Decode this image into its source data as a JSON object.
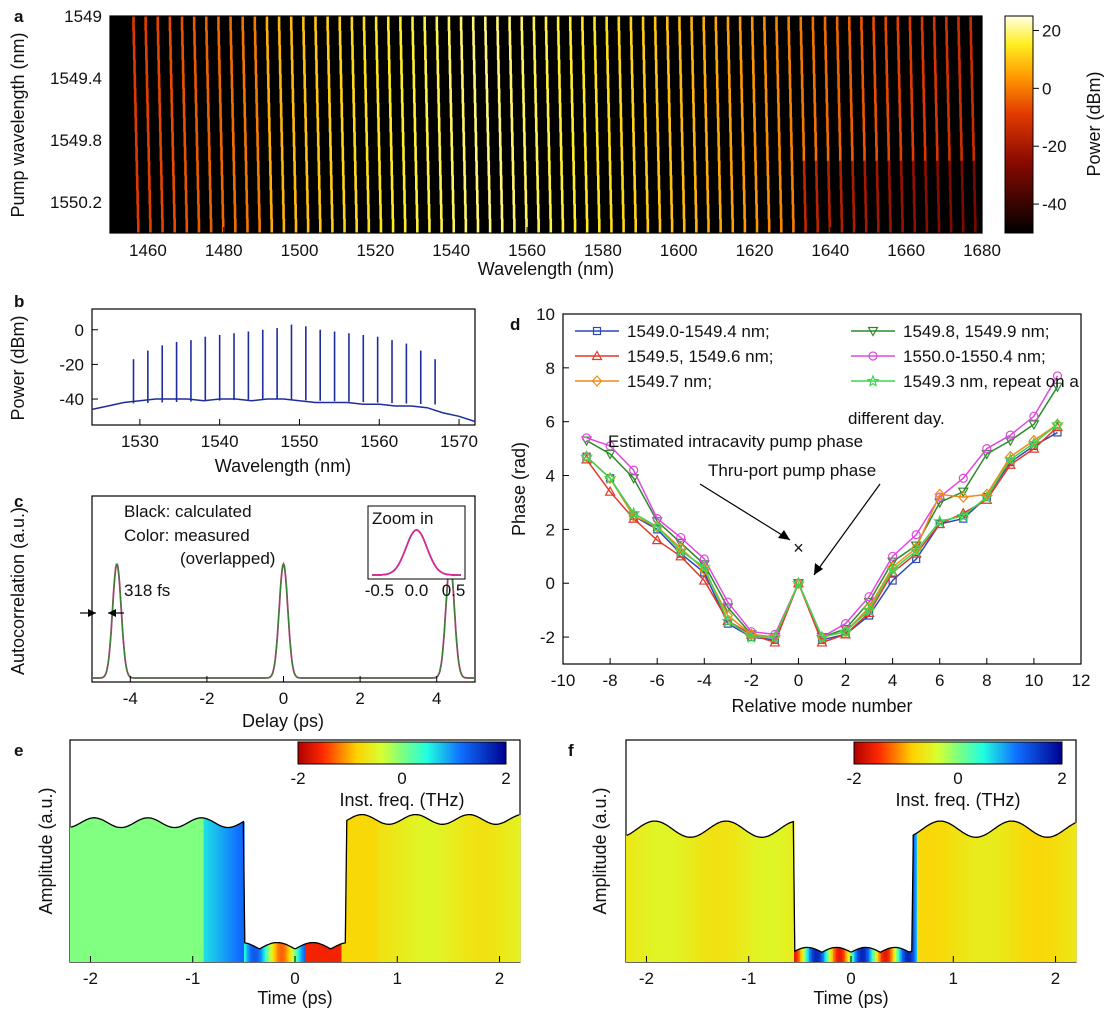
{
  "chart_data": [
    {
      "panel": "a",
      "type": "heatmap",
      "xlabel": "Wavelength (nm)",
      "ylabel": "Pump wavelength (nm)",
      "xlim": [
        1450,
        1680
      ],
      "ylim": [
        1549,
        1550.4
      ],
      "x_ticks": [
        "1460",
        "1480",
        "1500",
        "1520",
        "1540",
        "1560",
        "1580",
        "1600",
        "1620",
        "1640",
        "1660",
        "1680"
      ],
      "y_ticks": [
        "1549",
        "1549.4",
        "1549.8",
        "1550.2"
      ],
      "colorbar": {
        "label": "Power (dBm)",
        "range": [
          -50,
          25
        ],
        "ticks": [
          "20",
          "0",
          "-20",
          "-40"
        ]
      },
      "comb_center_nm": 1549,
      "comb_spacing_nm": 3.2,
      "pump_steps_nm": [
        1549.0,
        1549.1,
        1549.2,
        1549.3,
        1549.4,
        1549.5,
        1549.6,
        1549.7,
        1549.8,
        1549.9,
        1550.0,
        1550.1,
        1550.2,
        1550.3,
        1550.4
      ],
      "span_nm": [
        1455,
        1677
      ]
    },
    {
      "panel": "b",
      "type": "line",
      "xlabel": "Wavelength (nm)",
      "ylabel": "Power (dBm)",
      "xlim": [
        1524,
        1572
      ],
      "ylim": [
        -55,
        12
      ],
      "x_ticks": [
        "1530",
        "1540",
        "1550",
        "1560",
        "1570"
      ],
      "y_ticks": [
        "0",
        "-20",
        "-40"
      ],
      "color": "#1f2d9c",
      "line_x": [
        1524,
        1526,
        1528,
        1530,
        1532,
        1534,
        1536,
        1538,
        1540,
        1542,
        1544,
        1546,
        1548,
        1550,
        1552,
        1554,
        1556,
        1558,
        1560,
        1562,
        1564,
        1566,
        1568,
        1570,
        1572
      ],
      "line_y": [
        -46,
        -44,
        -42,
        -41,
        -40,
        -40,
        -40,
        -41,
        -40,
        -40,
        -41,
        -40,
        -40,
        -41,
        -42,
        -42,
        -42,
        -43,
        -43,
        -44,
        -44,
        -45,
        -48,
        -50,
        -53
      ],
      "line_x_peaks": [
        1529.2,
        1531.0,
        1532.8,
        1534.6,
        1536.4,
        1538.2,
        1540.0,
        1541.8,
        1543.6,
        1545.4,
        1547.2,
        1549.0,
        1550.8,
        1552.6,
        1554.4,
        1556.2,
        1558.0,
        1559.8,
        1561.6,
        1563.4,
        1565.2,
        1567.0
      ],
      "line_y_peaks": [
        -17,
        -12,
        -9,
        -7,
        -6,
        -4,
        -3,
        -2,
        -1,
        0,
        1,
        3,
        2,
        0,
        -1,
        -2,
        -3,
        -4,
        -6,
        -8,
        -12,
        -17
      ]
    },
    {
      "panel": "c",
      "type": "line",
      "xlabel": "Delay (ps)",
      "ylabel": "Autocorrelation (a.u.)",
      "xlim": [
        -5,
        5
      ],
      "x_ticks": [
        "-4",
        "-2",
        "0",
        "2",
        "4"
      ],
      "annotations": [
        "Black: calculated",
        "Color: measured",
        "(overlapped)",
        "318 fs"
      ],
      "inset": {
        "title": "Zoom in",
        "xlim": [
          -0.6,
          0.6
        ],
        "x_ticks": [
          "-0.5",
          "0.0",
          "0.5"
        ]
      },
      "peak_centers_ps": [
        -4.35,
        0,
        4.35
      ],
      "width_fs": 318,
      "series": [
        {
          "color": "#000000"
        },
        {
          "color": "#e0279a"
        }
      ]
    },
    {
      "panel": "d",
      "type": "scatter",
      "xlabel": "Relative mode number",
      "ylabel": "Phase (rad)",
      "xlim": [
        -10,
        12
      ],
      "ylim": [
        -3,
        10
      ],
      "x_ticks": [
        "-10",
        "-8",
        "-6",
        "-4",
        "-2",
        "0",
        "2",
        "4",
        "6",
        "8",
        "10",
        "12"
      ],
      "y_ticks": [
        "-2",
        "0",
        "2",
        "4",
        "6",
        "8",
        "10"
      ],
      "annotations": [
        "Estimated intracavity pump phase",
        "Thru-port pump phase"
      ],
      "cross_point": [
        0,
        1.3
      ],
      "x": [
        -9,
        -8,
        -7,
        -6,
        -5,
        -4,
        -3,
        -2,
        -1,
        0,
        1,
        2,
        3,
        4,
        5,
        6,
        7,
        8,
        9,
        10,
        11
      ],
      "series": [
        {
          "name": "1549.0-1549.4 nm;",
          "color": "#2f46b8",
          "marker": "square",
          "values": [
            4.7,
            3.9,
            2.5,
            2.0,
            1.1,
            0.4,
            -1.5,
            -2.0,
            -2.1,
            0,
            -2.1,
            -1.9,
            -1.2,
            0.1,
            0.9,
            2.2,
            2.4,
            3.2,
            4.5,
            5.1,
            5.6
          ]
        },
        {
          "name": "1549.8, 1549.9 nm;",
          "color": "#2a8a2a",
          "marker": "triangle-down",
          "values": [
            5.3,
            4.8,
            3.9,
            2.3,
            1.5,
            0.7,
            -0.9,
            -1.9,
            -2.0,
            0,
            -2.0,
            -1.7,
            -0.7,
            0.8,
            1.4,
            3.0,
            3.4,
            4.8,
            5.3,
            5.9,
            7.3
          ]
        },
        {
          "name": "1549.5, 1549.6 nm;",
          "color": "#e23a2a",
          "marker": "triangle-up",
          "values": [
            4.6,
            3.4,
            2.4,
            1.6,
            1.0,
            0.1,
            -1.4,
            -1.9,
            -2.2,
            0,
            -2.2,
            -1.9,
            -1.1,
            0.4,
            1.1,
            2.2,
            2.6,
            3.1,
            4.4,
            5.0,
            5.8
          ]
        },
        {
          "name": "1550.0-1550.4 nm;",
          "color": "#e048e0",
          "marker": "circle",
          "values": [
            5.4,
            5.1,
            4.2,
            2.4,
            1.7,
            0.9,
            -0.7,
            -1.8,
            -1.9,
            0,
            -2.0,
            -1.5,
            -0.5,
            1.0,
            1.8,
            3.2,
            3.9,
            5.0,
            5.5,
            6.2,
            7.7
          ]
        },
        {
          "name": "1549.7 nm;",
          "color": "#f08a18",
          "marker": "diamond",
          "values": [
            4.7,
            3.9,
            2.5,
            2.1,
            1.3,
            0.5,
            -1.2,
            -1.9,
            -2.0,
            0,
            -2.0,
            -1.8,
            -0.9,
            0.6,
            1.3,
            3.3,
            3.2,
            3.3,
            4.7,
            5.3,
            5.9
          ]
        },
        {
          "name": "1549.3 nm, repeat on a",
          "color": "#3cd650",
          "marker": "star",
          "values": [
            4.7,
            3.9,
            2.6,
            2.1,
            1.2,
            0.6,
            -1.4,
            -2.0,
            -2.0,
            0,
            -2.0,
            -1.8,
            -1.0,
            0.5,
            1.2,
            2.3,
            2.5,
            3.2,
            4.6,
            5.2,
            5.9
          ]
        }
      ],
      "legend_extra": "different day."
    },
    {
      "panel": "e",
      "type": "area",
      "xlabel": "Time (ps)",
      "ylabel": "Amplitude (a.u.)",
      "xlim": [
        -2.2,
        2.2
      ],
      "x_ticks": [
        "-2",
        "-1",
        "0",
        "1",
        "2"
      ],
      "colorbar": {
        "label": "Inst. freq. (THz)",
        "range": [
          -2,
          2
        ],
        "ticks": [
          "-2",
          "0",
          "2"
        ]
      }
    },
    {
      "panel": "f",
      "type": "area",
      "xlabel": "Time (ps)",
      "ylabel": "Amplitude (a.u.)",
      "xlim": [
        -2.2,
        2.2
      ],
      "x_ticks": [
        "-2",
        "-1",
        "0",
        "1",
        "2"
      ],
      "colorbar": {
        "label": "Inst. freq. (THz)",
        "range": [
          -2,
          2
        ],
        "ticks": [
          "-2",
          "0",
          "2"
        ]
      }
    }
  ],
  "panel_letters": [
    "a",
    "b",
    "c",
    "d",
    "e",
    "f"
  ]
}
